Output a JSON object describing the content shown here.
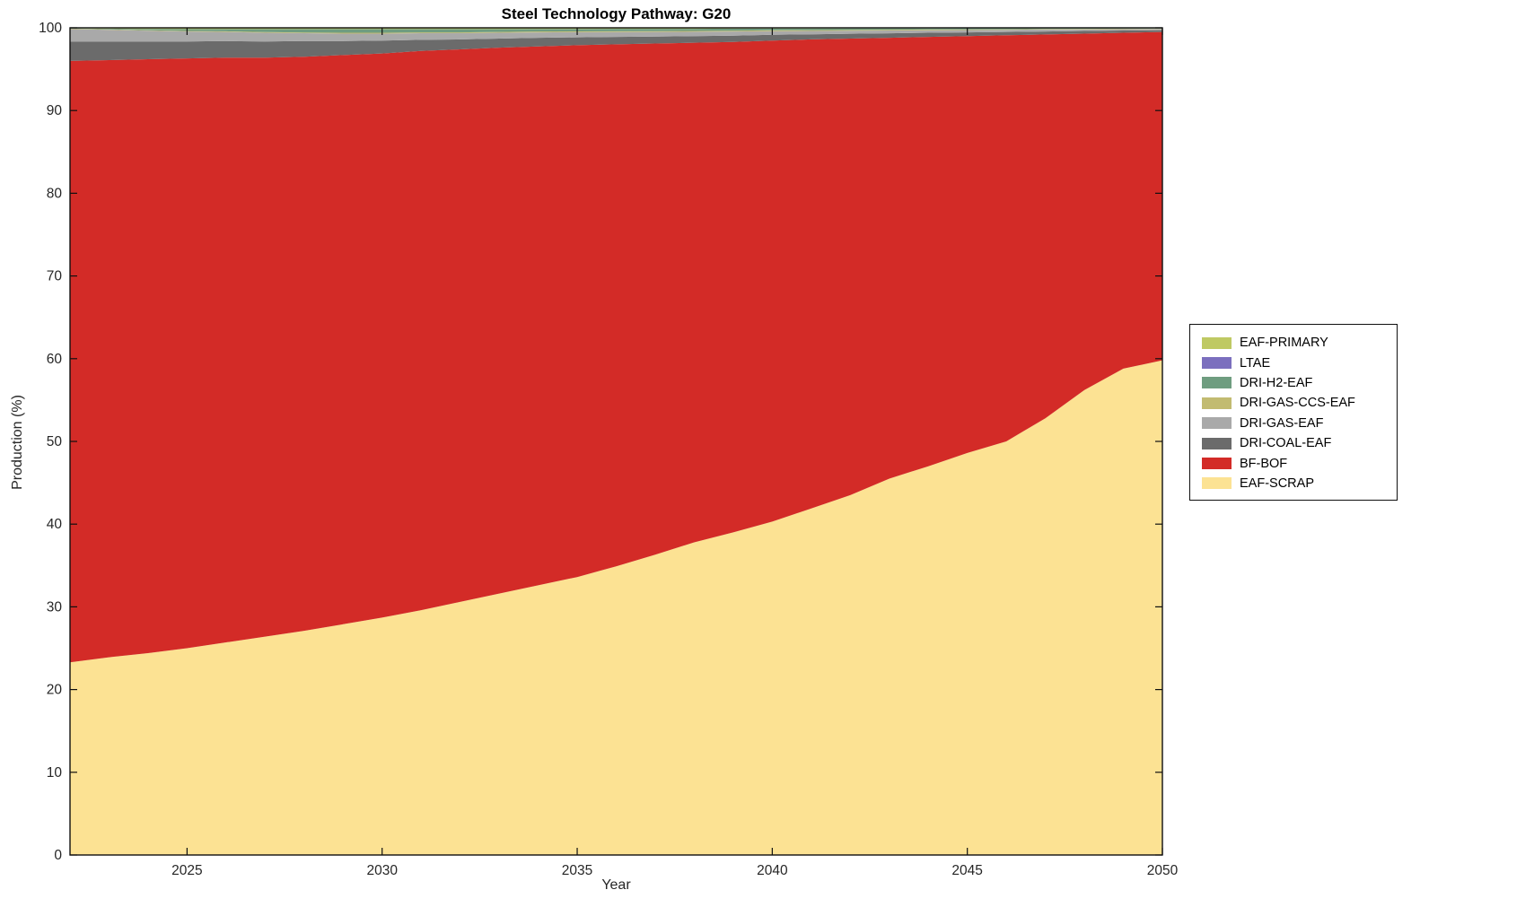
{
  "title": "Steel Technology Pathway: G20",
  "xlabel": "Year",
  "ylabel": "Production (%)",
  "chart_data": {
    "type": "area",
    "stacked": true,
    "title": "Steel Technology Pathway: G20",
    "xlabel": "Year",
    "ylabel": "Production (%)",
    "xlim": [
      2022,
      2050
    ],
    "ylim": [
      0,
      100
    ],
    "xticks": [
      2025,
      2030,
      2035,
      2040,
      2045,
      2050
    ],
    "yticks": [
      0,
      10,
      20,
      30,
      40,
      50,
      60,
      70,
      80,
      90,
      100
    ],
    "grid": false,
    "legend_position": "outside-right",
    "legend_order": "top-of-stack-first",
    "x": [
      2022,
      2023,
      2024,
      2025,
      2026,
      2027,
      2028,
      2029,
      2030,
      2031,
      2032,
      2033,
      2034,
      2035,
      2036,
      2037,
      2038,
      2039,
      2040,
      2041,
      2042,
      2043,
      2044,
      2045,
      2046,
      2047,
      2048,
      2049,
      2050
    ],
    "series": [
      {
        "name": "EAF-SCRAP",
        "color": "#FCE293",
        "values": [
          23.3,
          23.9,
          24.4,
          25.0,
          25.7,
          26.4,
          27.1,
          27.9,
          28.7,
          29.6,
          30.6,
          31.6,
          32.6,
          33.6,
          34.9,
          36.3,
          37.8,
          39.0,
          40.3,
          41.9,
          43.5,
          45.5,
          47.0,
          48.6,
          50.0,
          52.8,
          56.2,
          58.8,
          59.8
        ]
      },
      {
        "name": "BF-BOF",
        "color": "#D32B27",
        "values": [
          72.7,
          72.2,
          71.8,
          71.3,
          70.7,
          70.0,
          69.4,
          68.8,
          68.2,
          67.6,
          66.8,
          66.0,
          65.15,
          64.3,
          63.1,
          61.8,
          60.4,
          59.3,
          58.15,
          56.7,
          55.2,
          53.3,
          51.9,
          50.4,
          49.1,
          46.4,
          43.1,
          40.6,
          39.7
        ]
      },
      {
        "name": "DRI-COAL-EAF",
        "color": "#6B6B6B",
        "values": [
          2.35,
          2.25,
          2.15,
          2.05,
          2.0,
          1.95,
          1.9,
          1.7,
          1.55,
          1.35,
          1.2,
          1.1,
          1.05,
          0.95,
          0.9,
          0.85,
          0.8,
          0.75,
          0.7,
          0.62,
          0.58,
          0.54,
          0.5,
          0.45,
          0.4,
          0.36,
          0.32,
          0.27,
          0.22
        ]
      },
      {
        "name": "DRI-GAS-EAF",
        "color": "#A9A9A9",
        "values": [
          1.5,
          1.4,
          1.3,
          1.2,
          1.1,
          1.05,
          0.95,
          0.9,
          0.85,
          0.8,
          0.75,
          0.7,
          0.65,
          0.62,
          0.58,
          0.55,
          0.52,
          0.5,
          0.45,
          0.4,
          0.37,
          0.34,
          0.31,
          0.28,
          0.26,
          0.23,
          0.2,
          0.17,
          0.14
        ]
      },
      {
        "name": "DRI-GAS-CCS-EAF",
        "color": "#C2BB71",
        "values": [
          0.05,
          0.05,
          0.06,
          0.07,
          0.08,
          0.08,
          0.09,
          0.1,
          0.1,
          0.1,
          0.1,
          0.1,
          0.1,
          0.1,
          0.1,
          0.1,
          0.1,
          0.1,
          0.1,
          0.1,
          0.09,
          0.09,
          0.08,
          0.08,
          0.07,
          0.07,
          0.06,
          0.06,
          0.05
        ]
      },
      {
        "name": "DRI-H2-EAF",
        "color": "#6F9D80",
        "values": [
          0.05,
          0.1,
          0.15,
          0.23,
          0.27,
          0.37,
          0.41,
          0.45,
          0.45,
          0.4,
          0.4,
          0.35,
          0.32,
          0.3,
          0.3,
          0.28,
          0.26,
          0.25,
          0.22,
          0.2,
          0.19,
          0.17,
          0.15,
          0.14,
          0.12,
          0.1,
          0.08,
          0.07,
          0.06
        ]
      },
      {
        "name": "LTAE",
        "color": "#7B6FBE",
        "values": [
          0,
          0,
          0,
          0,
          0,
          0,
          0,
          0,
          0,
          0,
          0,
          0,
          0,
          0,
          0,
          0,
          0,
          0,
          0,
          0,
          0,
          0,
          0,
          0,
          0,
          0,
          0,
          0,
          0
        ]
      },
      {
        "name": "EAF-PRIMARY",
        "color": "#BFC963",
        "values": [
          0.05,
          0.1,
          0.14,
          0.15,
          0.15,
          0.15,
          0.15,
          0.15,
          0.15,
          0.15,
          0.15,
          0.15,
          0.13,
          0.13,
          0.12,
          0.12,
          0.12,
          0.1,
          0.08,
          0.08,
          0.07,
          0.06,
          0.06,
          0.05,
          0.05,
          0.04,
          0.04,
          0.03,
          0.03
        ]
      }
    ]
  }
}
